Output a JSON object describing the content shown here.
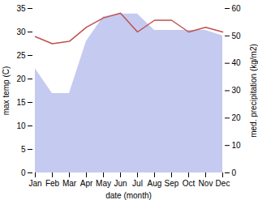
{
  "chart_data": {
    "type": "line",
    "categories": [
      "Jan",
      "Feb",
      "Mar",
      "Apr",
      "May",
      "Jun",
      "Jul",
      "Aug",
      "Sep",
      "Oct",
      "Nov",
      "Dec"
    ],
    "series": [
      {
        "type": "area",
        "axis": "y2",
        "color": "#c5caf0",
        "values": [
          38,
          29,
          29,
          48,
          57,
          58,
          58,
          52,
          52,
          52,
          52,
          50
        ]
      },
      {
        "type": "line",
        "color": "#c0504d",
        "values": [
          29,
          27.5,
          28,
          31,
          33,
          34,
          30,
          32.5,
          32.5,
          30,
          31,
          30
        ]
      }
    ],
    "xlabel": "date (month)",
    "ylabel": "max temp (C)",
    "y2label": "med. precipitation (kg/m2)",
    "ylim": [
      0,
      35
    ],
    "yticks": [
      0,
      5,
      10,
      15,
      20,
      25,
      30,
      35
    ],
    "y2lim": [
      0,
      60
    ],
    "y2ticks": [
      0,
      10,
      20,
      30,
      40,
      50,
      60
    ]
  }
}
